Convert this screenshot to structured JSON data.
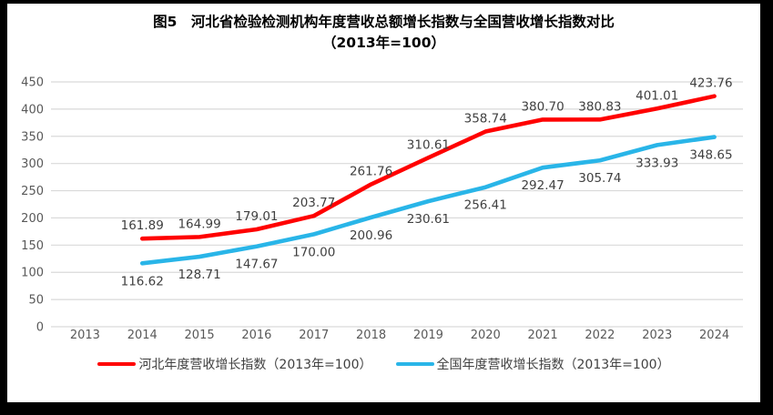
{
  "chart": {
    "title_line1": "图5　河北省检验检测机构年度营收总额增长指数与全国营收增长指数对比",
    "title_line2": "（2013年=100）"
  },
  "chart_data": {
    "type": "line",
    "title": "图5　河北省检验检测机构年度营收总额增长指数与全国营收增长指数对比（2013年=100）",
    "categories": [
      "2013",
      "2014",
      "2015",
      "2016",
      "2017",
      "2018",
      "2019",
      "2020",
      "2021",
      "2022",
      "2023",
      "2024"
    ],
    "series": [
      {
        "name": "河北年度营收增长指数（2013年=100）",
        "color": "#FF0000",
        "label_position": "above",
        "values": [
          null,
          161.89,
          164.99,
          179.01,
          203.77,
          261.76,
          310.61,
          358.74,
          380.7,
          380.83,
          401.01,
          423.76
        ]
      },
      {
        "name": "全国年度营收增长指数（2013年=100）",
        "color": "#29B5E8",
        "label_position": "below",
        "values": [
          null,
          116.62,
          128.71,
          147.67,
          170.0,
          200.96,
          230.61,
          256.41,
          292.47,
          305.74,
          333.93,
          348.65
        ]
      }
    ],
    "xlabel": "",
    "ylabel": "",
    "ylim": [
      0,
      450
    ],
    "ytick_step": 50,
    "grid": "horizontal",
    "gridline_color": "#D9D9D9",
    "legend_position": "bottom"
  }
}
